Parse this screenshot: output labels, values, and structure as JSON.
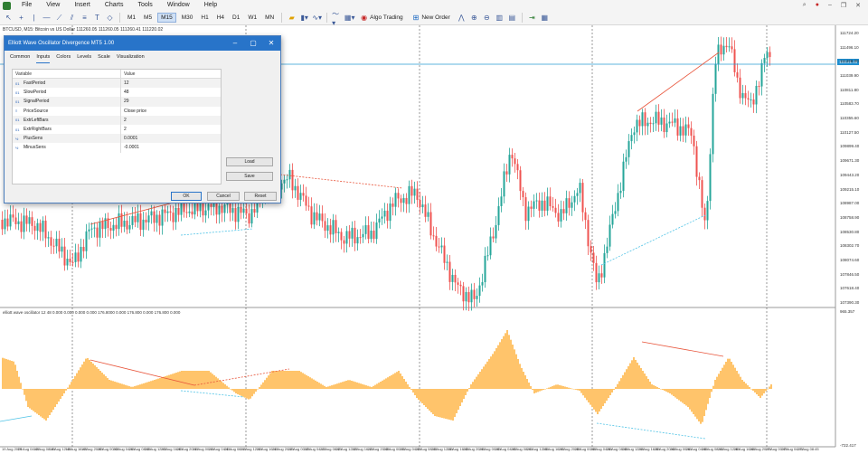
{
  "menu": {
    "items": [
      "File",
      "View",
      "Insert",
      "Charts",
      "Tools",
      "Window",
      "Help"
    ]
  },
  "toolbar": {
    "timeframes": [
      "M1",
      "M5",
      "M15",
      "M30",
      "H1",
      "H4",
      "D1",
      "W1",
      "MN"
    ],
    "active_timeframe": "M15",
    "algo_trading_label": "Algo Trading",
    "new_order_label": "New Order"
  },
  "chart": {
    "symbol_info": "BTCUSD, M15: Bitcoin vs US Dollar  111260.05 111260.05 111260.41 111220.02",
    "current_price": "111131.48",
    "price_axis": [
      "111724.20",
      "111496.10",
      "111268.00",
      "111039.90",
      "110811.80",
      "110583.70",
      "110355.60",
      "110127.50",
      "109899.40",
      "109671.30",
      "109443.20",
      "109215.10",
      "108987.00",
      "108758.90",
      "108530.80",
      "108302.70",
      "108074.60",
      "107846.50",
      "107618.40",
      "107390.30"
    ],
    "indicator_info": "elliott wave oscillator 12 48 0.000 0.000 0.000 0.000 176.8000 0.000 176.800 0.000 176.800 0.000",
    "indicator_axis_top": "965.357",
    "indicator_axis_bottom": "-722.417",
    "time_axis": [
      "19 Aug 2025",
      "19 Aug 04:45",
      "19 Aug 08:45",
      "19 Aug 12:45",
      "19 Aug 16:45",
      "19 Aug 20:45",
      "20 Aug 00:45",
      "20 Aug 04:45",
      "20 Aug 08:45",
      "20 Aug 12:45",
      "20 Aug 16:45",
      "20 Aug 20:45",
      "21 Aug 00:45",
      "21 Aug 04:45",
      "21 Aug 08:45",
      "21 Aug 12:45",
      "21 Aug 16:45",
      "21 Aug 20:45",
      "22 Aug 00:45",
      "22 Aug 04:45",
      "22 Aug 08:45",
      "22 Aug 12:45",
      "22 Aug 16:45",
      "22 Aug 20:45",
      "23 Aug 00:45",
      "23 Aug 04:45",
      "23 Aug 08:45",
      "23 Aug 12:45",
      "23 Aug 16:45",
      "23 Aug 20:45",
      "24 Aug 00:45",
      "24 Aug 04:45",
      "24 Aug 08:45",
      "24 Aug 12:45",
      "24 Aug 16:45",
      "24 Aug 20:45",
      "25 Aug 00:45",
      "25 Aug 04:45",
      "25 Aug 08:45",
      "25 Aug 12:45",
      "25 Aug 16:45",
      "25 Aug 20:45",
      "26 Aug 00:45",
      "26 Aug 04:45",
      "26 Aug 08:45",
      "26 Aug 12:45",
      "26 Aug 16:45",
      "26 Aug 20:45",
      "27 Aug 00:45",
      "27 Aug 04:45",
      "27 Aug 08:45"
    ],
    "colors": {
      "bull": "#26a69a",
      "bear": "#ef5350",
      "oscillator": "#ffc46b",
      "divergence_bear": "#e8553b",
      "divergence_bull": "#4fc3e6",
      "price_line": "#2a9bd3"
    }
  },
  "dialog": {
    "title": "Elliott Wave Oscillator Divergence MT5 1.00",
    "tabs": [
      "Common",
      "Inputs",
      "Colors",
      "Levels",
      "Scale",
      "Visualization"
    ],
    "active_tab": "Inputs",
    "columns": [
      "Variable",
      "Value"
    ],
    "rows": [
      {
        "icon": "int-icon",
        "variable": "FastPeriod",
        "value": "12"
      },
      {
        "icon": "int-icon",
        "variable": "SlowPeriod",
        "value": "48"
      },
      {
        "icon": "int-icon",
        "variable": "SignalPeriod",
        "value": "29"
      },
      {
        "icon": "enum-icon",
        "variable": "PriceSource",
        "value": "Close price"
      },
      {
        "icon": "int-icon",
        "variable": "ExtrLeftBars",
        "value": "2"
      },
      {
        "icon": "int-icon",
        "variable": "ExtrRightBars",
        "value": "2"
      },
      {
        "icon": "double-icon",
        "variable": "PlusSens",
        "value": "0.0001"
      },
      {
        "icon": "double-icon",
        "variable": "MinusSens",
        "value": "-0.0001"
      }
    ],
    "buttons": {
      "load": "Load",
      "save": "Save",
      "ok": "OK",
      "cancel": "Cancel",
      "reset": "Reset"
    }
  }
}
